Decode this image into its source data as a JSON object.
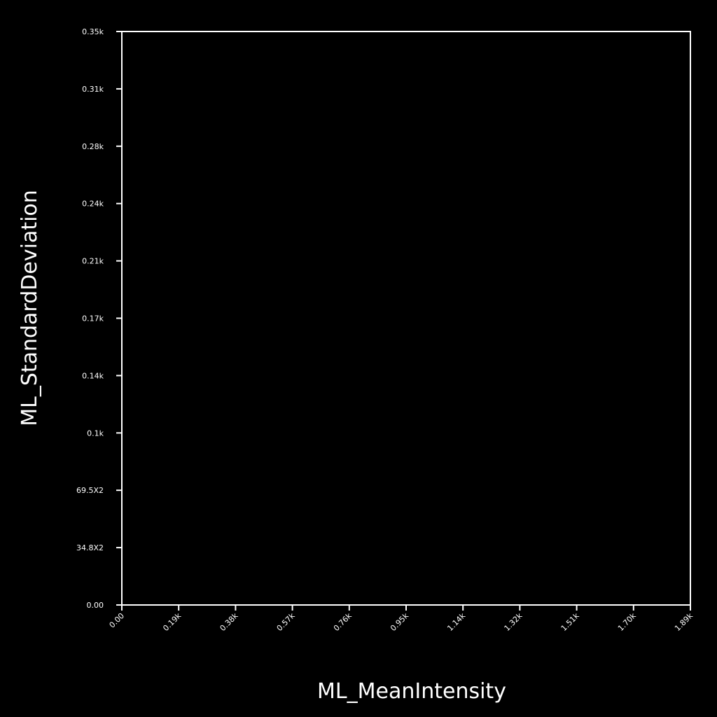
{
  "chart_data": {
    "type": "scatter",
    "title": "",
    "xlabel": "ML_MeanIntensity",
    "ylabel": "ML_StandardDeviation",
    "xlim": [
      0,
      1.89
    ],
    "ylim": [
      0,
      0.35
    ],
    "x_ticks": [
      "0.00",
      "0.19k",
      "0.38k",
      "0.57k",
      "0.76k",
      "0.95k",
      "1.14k",
      "1.32k",
      "1.51k",
      "1.70k",
      "1.89k"
    ],
    "y_ticks": [
      "0.00",
      "34.8X2",
      "69.5X2",
      "0.1k",
      "0.14k",
      "0.17k",
      "0.21k",
      "0.24k",
      "0.28k",
      "0.31k",
      "0.35k"
    ],
    "series": [],
    "grid": false,
    "legend": "none",
    "colors": {
      "background": "#000000",
      "foreground": "#ffffff"
    }
  }
}
